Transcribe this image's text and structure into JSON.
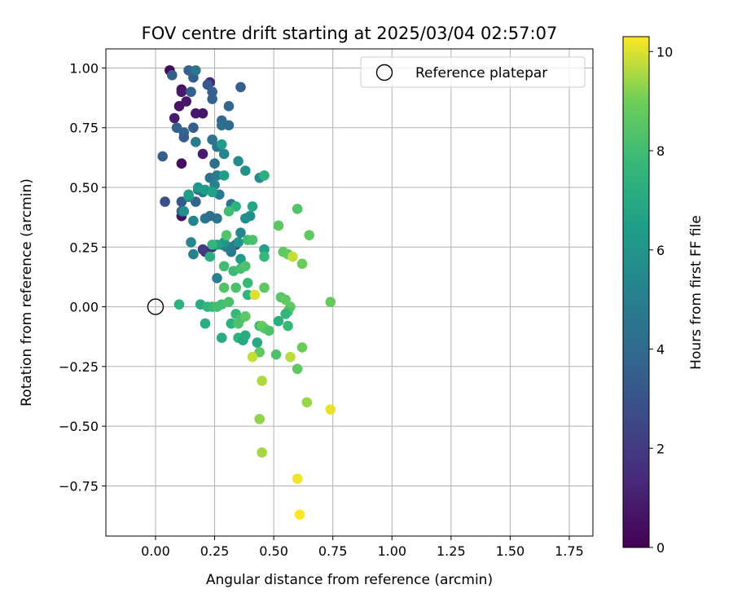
{
  "chart_data": {
    "type": "scatter",
    "title": "FOV centre drift starting at 2025/03/04 02:57:07",
    "xlabel": "Angular distance from reference (arcmin)",
    "ylabel": "Rotation from reference (arcmin)",
    "xlim": [
      -0.21,
      1.85
    ],
    "ylim": [
      -0.96,
      1.08
    ],
    "x_ticks": [
      0.0,
      0.25,
      0.5,
      0.75,
      1.0,
      1.25,
      1.5,
      1.75
    ],
    "x_tick_labels": [
      "0.00",
      "0.25",
      "0.50",
      "0.75",
      "1.00",
      "1.25",
      "1.50",
      "1.75"
    ],
    "y_ticks": [
      -0.75,
      -0.5,
      -0.25,
      0.0,
      0.25,
      0.5,
      0.75,
      1.0
    ],
    "y_tick_labels": [
      "−0.75",
      "−0.50",
      "−0.25",
      "0.00",
      "0.25",
      "0.50",
      "0.75",
      "1.00"
    ],
    "grid": true,
    "colormap": "viridis",
    "colorbar": {
      "label": "Hours from first FF file",
      "min": 0,
      "max": 10.3,
      "ticks": [
        0,
        2,
        4,
        6,
        8,
        10
      ],
      "tick_labels": [
        "0",
        "2",
        "4",
        "6",
        "8",
        "10"
      ]
    },
    "legend": {
      "position": "top-right",
      "entries": [
        {
          "label": "Reference platepar",
          "marker": "open-circle"
        }
      ]
    },
    "reference_point": {
      "x": 0.0,
      "y": 0.0
    },
    "points": [
      {
        "x": 0.06,
        "y": 0.99,
        "c": 0.3
      },
      {
        "x": 0.11,
        "y": 0.91,
        "c": 0.5
      },
      {
        "x": 0.13,
        "y": 0.86,
        "c": 0.7
      },
      {
        "x": 0.1,
        "y": 0.84,
        "c": 0.6
      },
      {
        "x": 0.08,
        "y": 0.79,
        "c": 0.9
      },
      {
        "x": 0.17,
        "y": 0.81,
        "c": 0.8
      },
      {
        "x": 0.2,
        "y": 0.81,
        "c": 0.7
      },
      {
        "x": 0.11,
        "y": 0.6,
        "c": 0.4
      },
      {
        "x": 0.2,
        "y": 0.64,
        "c": 0.9
      },
      {
        "x": 0.11,
        "y": 0.38,
        "c": 0.5
      },
      {
        "x": 0.23,
        "y": 0.94,
        "c": 1.2
      },
      {
        "x": 0.21,
        "y": 0.23,
        "c": 1.8
      },
      {
        "x": 0.2,
        "y": 0.24,
        "c": 2.0
      },
      {
        "x": 0.34,
        "y": 0.26,
        "c": 1.9
      },
      {
        "x": 0.24,
        "y": 0.25,
        "c": 1.4
      },
      {
        "x": 0.11,
        "y": 0.9,
        "c": 0.8
      },
      {
        "x": 0.07,
        "y": 0.97,
        "c": 3.5
      },
      {
        "x": 0.14,
        "y": 0.99,
        "c": 3.6
      },
      {
        "x": 0.16,
        "y": 0.96,
        "c": 3.4
      },
      {
        "x": 0.17,
        "y": 0.99,
        "c": 4.6
      },
      {
        "x": 0.15,
        "y": 0.9,
        "c": 3.5
      },
      {
        "x": 0.12,
        "y": 0.73,
        "c": 3.8
      },
      {
        "x": 0.09,
        "y": 0.75,
        "c": 3.6
      },
      {
        "x": 0.12,
        "y": 0.71,
        "c": 3.4
      },
      {
        "x": 0.16,
        "y": 0.75,
        "c": 3.4
      },
      {
        "x": 0.03,
        "y": 0.63,
        "c": 3.4
      },
      {
        "x": 0.04,
        "y": 0.44,
        "c": 2.8
      },
      {
        "x": 0.11,
        "y": 0.44,
        "c": 3.2
      },
      {
        "x": 0.11,
        "y": 0.4,
        "c": 3.5
      },
      {
        "x": 0.17,
        "y": 0.44,
        "c": 3.7
      },
      {
        "x": 0.22,
        "y": 0.93,
        "c": 3.2
      },
      {
        "x": 0.24,
        "y": 0.9,
        "c": 3.6
      },
      {
        "x": 0.24,
        "y": 0.87,
        "c": 3.7
      },
      {
        "x": 0.31,
        "y": 0.84,
        "c": 3.8
      },
      {
        "x": 0.36,
        "y": 0.92,
        "c": 3.5
      },
      {
        "x": 0.28,
        "y": 0.78,
        "c": 4.0
      },
      {
        "x": 0.28,
        "y": 0.76,
        "c": 4.2
      },
      {
        "x": 0.31,
        "y": 0.76,
        "c": 4.1
      },
      {
        "x": 0.17,
        "y": 0.69,
        "c": 5.0
      },
      {
        "x": 0.24,
        "y": 0.7,
        "c": 4.4
      },
      {
        "x": 0.26,
        "y": 0.67,
        "c": 4.5
      },
      {
        "x": 0.29,
        "y": 0.64,
        "c": 5.4
      },
      {
        "x": 0.25,
        "y": 0.6,
        "c": 4.2
      },
      {
        "x": 0.23,
        "y": 0.54,
        "c": 4.3
      },
      {
        "x": 0.26,
        "y": 0.55,
        "c": 4.8
      },
      {
        "x": 0.18,
        "y": 0.49,
        "c": 4.3
      },
      {
        "x": 0.2,
        "y": 0.48,
        "c": 4.6
      },
      {
        "x": 0.25,
        "y": 0.51,
        "c": 5.2
      },
      {
        "x": 0.27,
        "y": 0.47,
        "c": 4.7
      },
      {
        "x": 0.32,
        "y": 0.43,
        "c": 4.5
      },
      {
        "x": 0.21,
        "y": 0.37,
        "c": 4.3
      },
      {
        "x": 0.23,
        "y": 0.38,
        "c": 4.2
      },
      {
        "x": 0.26,
        "y": 0.37,
        "c": 4.4
      },
      {
        "x": 0.16,
        "y": 0.36,
        "c": 5.2
      },
      {
        "x": 0.14,
        "y": 0.46,
        "c": 5.6
      },
      {
        "x": 0.12,
        "y": 0.4,
        "c": 5.7
      },
      {
        "x": 0.15,
        "y": 0.27,
        "c": 5.4
      },
      {
        "x": 0.16,
        "y": 0.22,
        "c": 5.1
      },
      {
        "x": 0.26,
        "y": 0.12,
        "c": 4.9
      },
      {
        "x": 0.32,
        "y": 0.23,
        "c": 4.6
      },
      {
        "x": 0.28,
        "y": 0.26,
        "c": 5.0
      },
      {
        "x": 0.3,
        "y": 0.25,
        "c": 5.2
      },
      {
        "x": 0.32,
        "y": 0.25,
        "c": 5.0
      },
      {
        "x": 0.36,
        "y": 0.31,
        "c": 5.4
      },
      {
        "x": 0.4,
        "y": 0.38,
        "c": 5.6
      },
      {
        "x": 0.38,
        "y": 0.37,
        "c": 5.8
      },
      {
        "x": 0.35,
        "y": 0.61,
        "c": 5.6
      },
      {
        "x": 0.38,
        "y": 0.57,
        "c": 5.9
      },
      {
        "x": 0.44,
        "y": 0.54,
        "c": 5.7
      },
      {
        "x": 0.46,
        "y": 0.55,
        "c": 7.3
      },
      {
        "x": 0.28,
        "y": 0.68,
        "c": 6.3
      },
      {
        "x": 0.29,
        "y": 0.55,
        "c": 6.5
      },
      {
        "x": 0.14,
        "y": 0.47,
        "c": 6.5
      },
      {
        "x": 0.18,
        "y": 0.5,
        "c": 6.2
      },
      {
        "x": 0.21,
        "y": 0.49,
        "c": 6.4
      },
      {
        "x": 0.24,
        "y": 0.48,
        "c": 6.6
      },
      {
        "x": 0.41,
        "y": 0.42,
        "c": 6.8
      },
      {
        "x": 0.34,
        "y": 0.42,
        "c": 7.4
      },
      {
        "x": 0.29,
        "y": 0.27,
        "c": 6.1
      },
      {
        "x": 0.35,
        "y": 0.27,
        "c": 6.0
      },
      {
        "x": 0.36,
        "y": 0.2,
        "c": 6.3
      },
      {
        "x": 0.26,
        "y": 0.26,
        "c": 6.6
      },
      {
        "x": 0.23,
        "y": 0.21,
        "c": 7.2
      },
      {
        "x": 0.24,
        "y": 0.26,
        "c": 7.6
      },
      {
        "x": 0.31,
        "y": 0.4,
        "c": 8.0
      },
      {
        "x": 0.3,
        "y": 0.3,
        "c": 8.4
      },
      {
        "x": 0.29,
        "y": 0.17,
        "c": 8.0
      },
      {
        "x": 0.33,
        "y": 0.15,
        "c": 7.9
      },
      {
        "x": 0.36,
        "y": 0.16,
        "c": 8.1
      },
      {
        "x": 0.38,
        "y": 0.17,
        "c": 8.3
      },
      {
        "x": 0.39,
        "y": 0.1,
        "c": 7.8
      },
      {
        "x": 0.34,
        "y": 0.08,
        "c": 8.2
      },
      {
        "x": 0.29,
        "y": 0.08,
        "c": 8.4
      },
      {
        "x": 0.39,
        "y": 0.28,
        "c": 8.0
      },
      {
        "x": 0.41,
        "y": 0.28,
        "c": 8.2
      },
      {
        "x": 0.46,
        "y": 0.24,
        "c": 6.6
      },
      {
        "x": 0.46,
        "y": 0.21,
        "c": 7.8
      },
      {
        "x": 0.39,
        "y": 0.05,
        "c": 7.5
      },
      {
        "x": 0.52,
        "y": 0.34,
        "c": 8.6
      },
      {
        "x": 0.54,
        "y": 0.23,
        "c": 8.6
      },
      {
        "x": 0.56,
        "y": 0.22,
        "c": 8.8
      },
      {
        "x": 0.6,
        "y": 0.41,
        "c": 8.4
      },
      {
        "x": 0.65,
        "y": 0.3,
        "c": 8.7
      },
      {
        "x": 0.58,
        "y": 0.21,
        "c": 9.8
      },
      {
        "x": 0.62,
        "y": 0.18,
        "c": 8.9
      },
      {
        "x": 0.42,
        "y": 0.05,
        "c": 10.0
      },
      {
        "x": 0.46,
        "y": 0.08,
        "c": 8.6
      },
      {
        "x": 0.53,
        "y": 0.04,
        "c": 8.5
      },
      {
        "x": 0.55,
        "y": 0.03,
        "c": 8.7
      },
      {
        "x": 0.57,
        "y": 0.0,
        "c": 8.6
      },
      {
        "x": 0.56,
        "y": -0.02,
        "c": 8.3
      },
      {
        "x": 0.55,
        "y": -0.03,
        "c": 7.6
      },
      {
        "x": 0.56,
        "y": -0.08,
        "c": 7.8
      },
      {
        "x": 0.52,
        "y": -0.06,
        "c": 7.2
      },
      {
        "x": 0.74,
        "y": 0.02,
        "c": 8.8
      },
      {
        "x": 0.1,
        "y": 0.01,
        "c": 7.4
      },
      {
        "x": 0.19,
        "y": 0.01,
        "c": 7.1
      },
      {
        "x": 0.22,
        "y": 0.0,
        "c": 7.6
      },
      {
        "x": 0.24,
        "y": 0.0,
        "c": 7.8
      },
      {
        "x": 0.26,
        "y": 0.0,
        "c": 8.1
      },
      {
        "x": 0.28,
        "y": 0.01,
        "c": 8.0
      },
      {
        "x": 0.31,
        "y": 0.02,
        "c": 8.2
      },
      {
        "x": 0.34,
        "y": -0.03,
        "c": 7.7
      },
      {
        "x": 0.36,
        "y": -0.05,
        "c": 8.1
      },
      {
        "x": 0.38,
        "y": -0.04,
        "c": 8.6
      },
      {
        "x": 0.21,
        "y": -0.07,
        "c": 7.2
      },
      {
        "x": 0.32,
        "y": -0.07,
        "c": 7.3
      },
      {
        "x": 0.35,
        "y": -0.07,
        "c": 8.3
      },
      {
        "x": 0.28,
        "y": -0.13,
        "c": 7.1
      },
      {
        "x": 0.35,
        "y": -0.13,
        "c": 7.5
      },
      {
        "x": 0.37,
        "y": -0.14,
        "c": 6.9
      },
      {
        "x": 0.38,
        "y": -0.12,
        "c": 7.1
      },
      {
        "x": 0.44,
        "y": -0.08,
        "c": 7.8
      },
      {
        "x": 0.45,
        "y": -0.08,
        "c": 8.9
      },
      {
        "x": 0.46,
        "y": -0.09,
        "c": 8.6
      },
      {
        "x": 0.48,
        "y": -0.1,
        "c": 8.3
      },
      {
        "x": 0.43,
        "y": -0.15,
        "c": 7.0
      },
      {
        "x": 0.44,
        "y": -0.19,
        "c": 8.7
      },
      {
        "x": 0.41,
        "y": -0.21,
        "c": 9.8
      },
      {
        "x": 0.51,
        "y": -0.2,
        "c": 8.3
      },
      {
        "x": 0.57,
        "y": -0.21,
        "c": 9.7
      },
      {
        "x": 0.6,
        "y": -0.26,
        "c": 8.6
      },
      {
        "x": 0.62,
        "y": -0.17,
        "c": 8.9
      },
      {
        "x": 0.45,
        "y": -0.31,
        "c": 9.6
      },
      {
        "x": 0.44,
        "y": -0.47,
        "c": 9.3
      },
      {
        "x": 0.64,
        "y": -0.4,
        "c": 9.4
      },
      {
        "x": 0.74,
        "y": -0.43,
        "c": 10.1
      },
      {
        "x": 0.45,
        "y": -0.61,
        "c": 9.5
      },
      {
        "x": 0.6,
        "y": -0.72,
        "c": 10.2
      },
      {
        "x": 0.61,
        "y": -0.87,
        "c": 10.3
      }
    ]
  }
}
